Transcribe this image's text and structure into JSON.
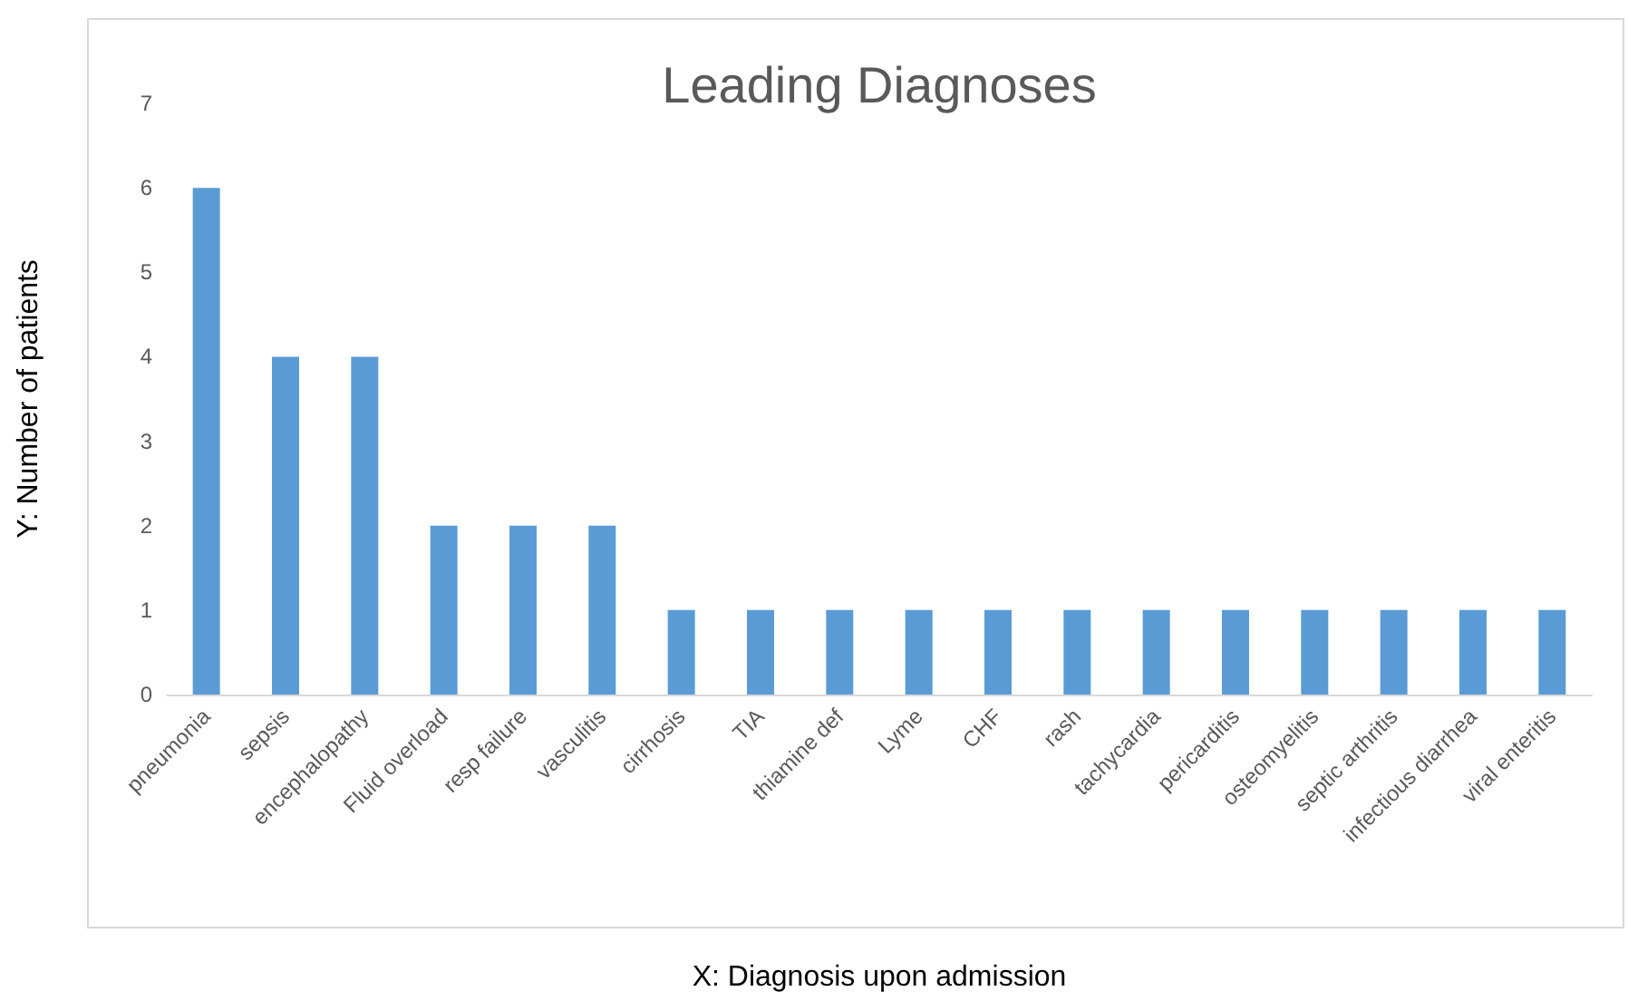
{
  "chart_data": {
    "type": "bar",
    "title": "Leading Diagnoses",
    "xlabel": "X: Diagnosis upon admission",
    "ylabel": "Y: Number of patients",
    "categories": [
      "pneumonia",
      "sepsis",
      "encephalopathy",
      "Fluid overload",
      "resp failure",
      "vasculitis",
      "cirrhosis",
      "TIA",
      "thiamine def",
      "Lyme",
      "CHF",
      "rash",
      "tachycardia",
      "pericarditis",
      "osteomyelitis",
      "septic arthritis",
      "infectious diarrhea",
      "viral enteritis"
    ],
    "values": [
      6,
      4,
      4,
      2,
      2,
      2,
      1,
      1,
      1,
      1,
      1,
      1,
      1,
      1,
      1,
      1,
      1,
      1
    ],
    "color": "#5b9bd5",
    "ylim": [
      0,
      7
    ],
    "yticks": [
      0,
      1,
      2,
      3,
      4,
      5,
      6,
      7
    ]
  }
}
